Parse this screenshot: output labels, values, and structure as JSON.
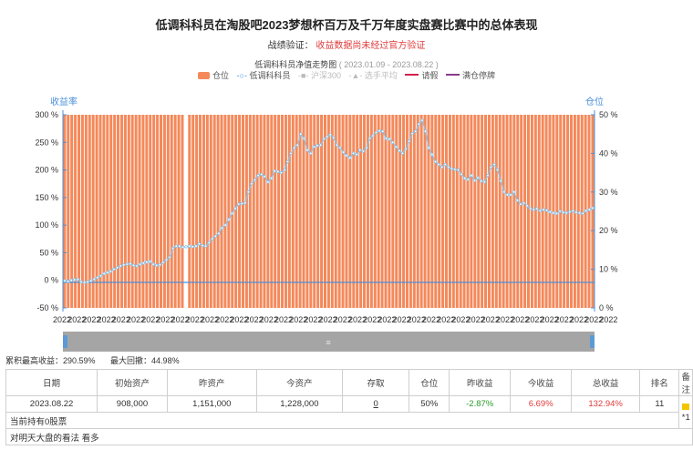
{
  "title": "低调科科员在淘股吧2023梦想杯百万及千万年度实盘赛比赛中的总体表现",
  "verify": {
    "prefix": "战绩验证：",
    "text": "收益数据尚未经过官方验证"
  },
  "chart_title": {
    "text": "低调科科员净值走势图",
    "range": "( 2023.01.09 - 2023.08.22 )"
  },
  "legend": [
    {
      "label": "仓位",
      "type": "swatch",
      "color": "#f4895b"
    },
    {
      "label": "低调科科员",
      "type": "line-marker",
      "color": "#8ec3e6"
    },
    {
      "label": "沪深300",
      "type": "line-marker-muted",
      "color": "#cccccc"
    },
    {
      "label": "选手平均",
      "type": "line-marker-muted",
      "color": "#cccccc"
    },
    {
      "label": "请假",
      "type": "line",
      "color": "#d6204a"
    },
    {
      "label": "满仓停牌",
      "type": "line",
      "color": "#8b3a8b"
    }
  ],
  "chart_data": {
    "type": "bar+line",
    "ylabel_left": "收益率",
    "ylabel_right": "仓位",
    "ylim_left": [
      -50,
      300
    ],
    "ylim_right": [
      0,
      50
    ],
    "yticks_left": [
      "300 %",
      "250 %",
      "200 %",
      "150 %",
      "100 %",
      "50 %",
      "0 %",
      "-50 %"
    ],
    "yticks_right": [
      "50 %",
      "40 %",
      "30 %",
      "20 %",
      "10 %",
      "0 %"
    ],
    "x_tick_label": "2022",
    "series": [
      {
        "name": "仓位",
        "type": "bar",
        "color": "#f4895b",
        "values_percent_note": "all positions near 50%, gap around point 34",
        "values": [
          50,
          50,
          50,
          50,
          50,
          50,
          50,
          50,
          50,
          50,
          50,
          50,
          50,
          50,
          50,
          50,
          50,
          50,
          50,
          50,
          50,
          50,
          50,
          50,
          50,
          50,
          50,
          50,
          50,
          50,
          50,
          50,
          50,
          50,
          0,
          50,
          50,
          50,
          50,
          50,
          50,
          50,
          50,
          50,
          50,
          50,
          50,
          50,
          50,
          50,
          50,
          50,
          50,
          50,
          50,
          50,
          50,
          50,
          50,
          50,
          50,
          50,
          50,
          50,
          50,
          50,
          50,
          50,
          50,
          50,
          50,
          50,
          50,
          50,
          50,
          50,
          50,
          50,
          50,
          50,
          50,
          50,
          50,
          50,
          50,
          50,
          50,
          50,
          50,
          50,
          50,
          50,
          50,
          50,
          50,
          50,
          50,
          50,
          50,
          50,
          50,
          50,
          50,
          50,
          50,
          50,
          50,
          50,
          50,
          50,
          50,
          50,
          50,
          50,
          50,
          50,
          50,
          50,
          50,
          50,
          50,
          50,
          50,
          50,
          50,
          50,
          50,
          50,
          50,
          50,
          50,
          50,
          50,
          50,
          50,
          50,
          50,
          50,
          50,
          50,
          50,
          50,
          50,
          50,
          50,
          50,
          50,
          50,
          50
        ]
      },
      {
        "name": "低调科科员",
        "type": "line",
        "color": "#8ec3e6",
        "values": [
          -1,
          -2,
          0,
          1,
          2,
          -3,
          -4,
          -3,
          -1,
          2,
          5,
          8,
          12,
          14,
          16,
          20,
          23,
          26,
          28,
          29,
          30,
          27,
          26,
          29,
          31,
          33,
          34,
          29,
          27,
          28,
          32,
          37,
          42,
          58,
          62,
          62,
          60,
          61,
          62,
          61,
          62,
          66,
          63,
          62,
          68,
          75,
          80,
          85,
          95,
          100,
          110,
          121,
          130,
          138,
          139,
          140,
          160,
          175,
          182,
          190,
          192,
          188,
          178,
          185,
          198,
          197,
          195,
          200,
          215,
          230,
          240,
          245,
          265,
          257,
          236,
          230,
          242,
          244,
          245,
          256,
          260,
          264,
          258,
          245,
          240,
          232,
          226,
          222,
          230,
          228,
          236,
          234,
          240,
          257,
          262,
          268,
          271,
          270,
          257,
          256,
          250,
          242,
          235,
          230,
          238,
          252,
          266,
          270,
          283,
          290,
          270,
          240,
          228,
          215,
          210,
          205,
          210,
          205,
          202,
          201,
          200,
          192,
          185,
          183,
          190,
          181,
          186,
          180,
          178,
          190,
          205,
          210,
          200,
          180,
          160,
          155,
          155,
          160,
          145,
          138,
          140,
          135,
          130,
          128,
          130,
          126,
          128,
          127,
          124,
          122,
          121,
          125,
          123,
          122,
          124,
          126,
          123,
          122,
          121,
          126,
          128,
          131
        ]
      }
    ]
  },
  "stats": {
    "max_return": "累积最高收益：290.59%",
    "max_drawdown": "最大回撤：44.98%"
  },
  "table": {
    "headers": [
      "日期",
      "初始资产",
      "昨资产",
      "今资产",
      "存取",
      "仓位",
      "昨收益",
      "今收益",
      "总收益",
      "排名",
      "备注"
    ],
    "row": [
      "2023.08.22",
      "908,000",
      "1,151,000",
      "1,228,000",
      "0",
      "50%",
      "-2.87%",
      "6.69%",
      "132.94%",
      "11",
      "*1"
    ],
    "holding": "当前持有0股票",
    "view": "对明天大盘的看法  看多"
  },
  "colors": {
    "bar": "#f4895b",
    "line": "#8ec3e6",
    "axis": "#4a90d9",
    "red": "#e03b3b",
    "green": "#2a9d2a"
  }
}
